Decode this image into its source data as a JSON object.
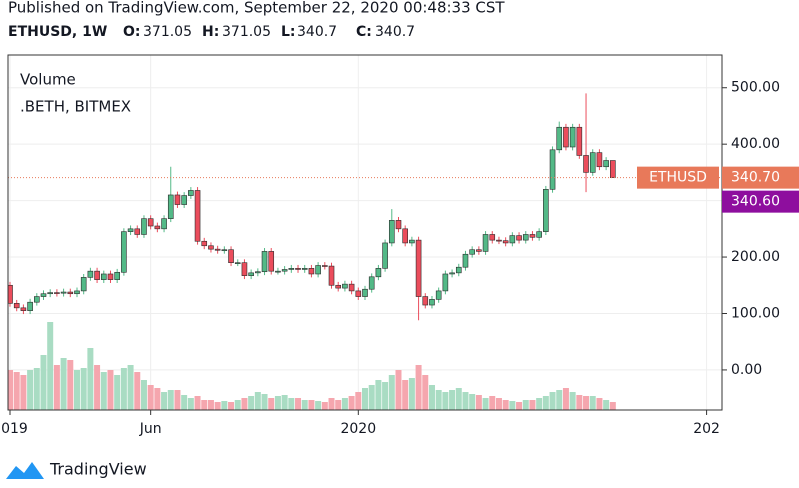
{
  "header": {
    "published": "Published on TradingView.com, September 22, 2020 00:48:33 CST",
    "symbol": "ETHUSD, 1W",
    "o_label": "O:",
    "o": 371.05,
    "h_label": "H:",
    "h": 371.05,
    "l_label": "L:",
    "l": 340.7,
    "c_label": "C:",
    "c": 340.7
  },
  "footer": {
    "brand": "TradingView"
  },
  "chart_data": {
    "type": "candlestick",
    "legend": [
      "Volume",
      ".BETH, BITMEX"
    ],
    "up_color": "#53b987",
    "down_color": "#eb4d5c",
    "volume_up_color": "#a9dcc3",
    "volume_down_color": "#f5a6ae",
    "grid": true,
    "xlim": [
      -0.3,
      106.3
    ],
    "xticks": [
      {
        "value": 0,
        "label": "2019"
      },
      {
        "value": 21,
        "label": "Jun"
      },
      {
        "value": 52,
        "label": "2020"
      },
      {
        "value": 104,
        "label": "202"
      }
    ],
    "ylim": [
      -71,
      558
    ],
    "yticks": [
      {
        "value": 0,
        "label": "0.00"
      },
      {
        "value": 100,
        "label": "100.00"
      },
      {
        "value": 200,
        "label": "200.00"
      },
      {
        "value": 300,
        "label": "300.00"
      },
      {
        "value": 400,
        "label": "400.00"
      },
      {
        "value": 500,
        "label": "500.00"
      }
    ],
    "open": [
      150,
      118,
      110,
      105,
      120,
      130,
      135,
      137,
      136,
      138,
      135,
      140,
      164,
      175,
      160,
      170,
      160,
      173,
      245,
      250,
      240,
      268,
      255,
      250,
      268,
      310,
      293,
      309,
      318,
      228,
      220,
      214,
      212,
      213,
      190,
      190,
      167,
      172,
      174,
      210,
      175,
      175,
      178,
      180,
      178,
      180,
      170,
      185,
      184,
      150,
      145,
      152,
      140,
      130,
      143,
      165,
      180,
      225,
      265,
      250,
      225,
      230,
      130,
      115,
      125,
      140,
      170,
      172,
      182,
      205,
      213,
      210,
      240,
      230,
      229,
      225,
      238,
      230,
      240,
      235,
      245,
      320,
      390,
      430,
      395,
      430,
      380,
      350,
      385,
      360,
      371.05
    ],
    "high": [
      156,
      124,
      116,
      126,
      136,
      141,
      143,
      143,
      144,
      144,
      146,
      170,
      181,
      181,
      176,
      176,
      179,
      251,
      256,
      256,
      274,
      274,
      261,
      274,
      360,
      316,
      315,
      324,
      324,
      234,
      226,
      220,
      219,
      219,
      196,
      196,
      178,
      180,
      216,
      216,
      181,
      184,
      186,
      186,
      186,
      186,
      191,
      191,
      190,
      156,
      158,
      158,
      146,
      149,
      171,
      186,
      231,
      285,
      271,
      256,
      236,
      236,
      136,
      131,
      146,
      176,
      178,
      188,
      211,
      219,
      219,
      246,
      246,
      236,
      235,
      244,
      244,
      246,
      246,
      251,
      326,
      396,
      440,
      436,
      436,
      436,
      490,
      391,
      391,
      377,
      371.05
    ],
    "low": [
      112,
      104,
      99,
      99,
      114,
      124,
      129,
      130,
      130,
      129,
      129,
      134,
      158,
      154,
      154,
      154,
      154,
      167,
      239,
      234,
      234,
      249,
      244,
      244,
      262,
      287,
      287,
      303,
      222,
      214,
      208,
      206,
      206,
      184,
      184,
      161,
      161,
      166,
      168,
      169,
      169,
      169,
      172,
      172,
      172,
      164,
      164,
      178,
      144,
      139,
      139,
      134,
      124,
      124,
      137,
      159,
      174,
      219,
      244,
      219,
      219,
      88,
      109,
      109,
      119,
      134,
      164,
      166,
      176,
      199,
      204,
      204,
      224,
      223,
      219,
      219,
      224,
      224,
      229,
      229,
      239,
      314,
      384,
      389,
      389,
      374,
      315,
      344,
      354,
      354,
      340.7
    ],
    "close": [
      118,
      110,
      105,
      120,
      130,
      135,
      137,
      136,
      138,
      135,
      140,
      164,
      175,
      160,
      170,
      160,
      173,
      245,
      250,
      240,
      268,
      255,
      250,
      268,
      310,
      293,
      309,
      318,
      228,
      220,
      214,
      212,
      213,
      190,
      190,
      167,
      172,
      174,
      210,
      175,
      175,
      178,
      180,
      178,
      180,
      170,
      185,
      184,
      150,
      145,
      152,
      140,
      130,
      143,
      165,
      180,
      225,
      265,
      250,
      225,
      230,
      130,
      115,
      125,
      140,
      170,
      172,
      182,
      205,
      213,
      210,
      240,
      230,
      229,
      225,
      238,
      230,
      240,
      235,
      245,
      320,
      390,
      430,
      395,
      430,
      380,
      350,
      385,
      360,
      371.05,
      340.7
    ],
    "volume": [
      40,
      38,
      35,
      40,
      42,
      55,
      88,
      45,
      52,
      50,
      40,
      42,
      62,
      45,
      38,
      40,
      35,
      42,
      45,
      38,
      30,
      25,
      22,
      18,
      20,
      20,
      15,
      12,
      14,
      10,
      10,
      8,
      9,
      8,
      10,
      12,
      14,
      18,
      16,
      12,
      14,
      15,
      12,
      12,
      10,
      10,
      9,
      8,
      12,
      10,
      12,
      14,
      18,
      22,
      25,
      30,
      28,
      35,
      40,
      30,
      32,
      45,
      35,
      25,
      20,
      18,
      20,
      22,
      18,
      16,
      15,
      12,
      14,
      12,
      10,
      9,
      8,
      10,
      10,
      12,
      14,
      18,
      20,
      22,
      18,
      15,
      14,
      14,
      12,
      10,
      8
    ],
    "last_price": {
      "symbol": "ETHUSD",
      "value": 340.7,
      "label": "340.70",
      "color": "#e8795a"
    },
    "second_price": {
      "label": "340.60",
      "color": "#8e0e9e"
    }
  }
}
